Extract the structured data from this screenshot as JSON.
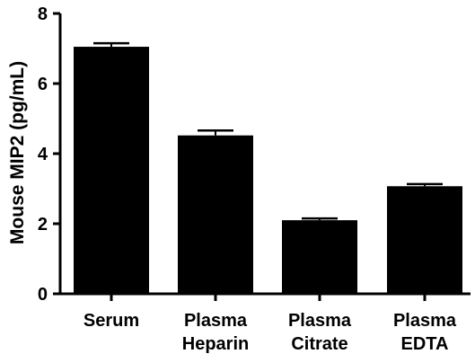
{
  "chart_data": {
    "type": "bar",
    "categories": [
      [
        "Serum"
      ],
      [
        "Plasma",
        "Heparin"
      ],
      [
        "Plasma",
        "Citrate"
      ],
      [
        "Plasma",
        "EDTA"
      ]
    ],
    "values": [
      7.05,
      4.52,
      2.1,
      3.07
    ],
    "error_upper": [
      7.15,
      4.66,
      2.15,
      3.13
    ],
    "ylabel": "Mouse MIP2 (pg/mL)",
    "xlabel": "",
    "ylim": [
      0,
      8
    ],
    "yticks": [
      0,
      2,
      4,
      6,
      8
    ],
    "bar_color": "#000000",
    "grid": false
  }
}
